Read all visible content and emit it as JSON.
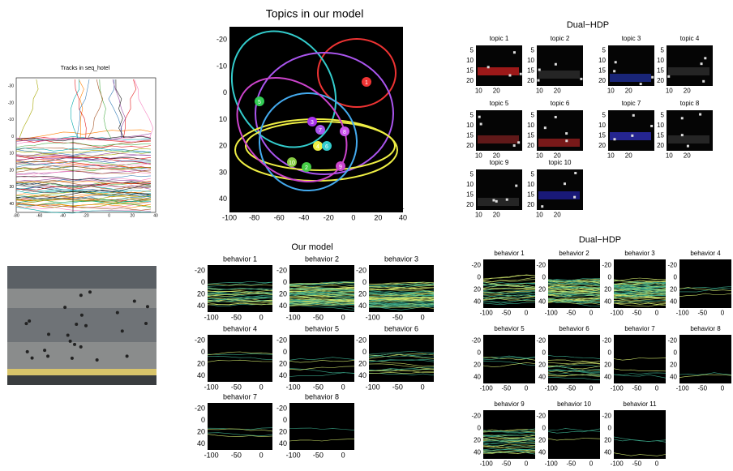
{
  "tracks_panel": {
    "title": "Tracks in seq_hotel",
    "xticks": [
      "-80",
      "-60",
      "-40",
      "-20",
      "0",
      "20",
      "40"
    ],
    "yticks": [
      "-30",
      "-20",
      "-10",
      "0",
      "10",
      "20",
      "30",
      "40"
    ]
  },
  "topics_panel": {
    "title": "Topics in our model",
    "xticks": [
      "-100",
      "-80",
      "-60",
      "-40",
      "-20",
      "0",
      "20",
      "40"
    ],
    "yticks": [
      "-20",
      "-10",
      "0",
      "10",
      "20",
      "30",
      "40"
    ],
    "markers": [
      "1",
      "2",
      "3",
      "4",
      "5",
      "6",
      "7",
      "8",
      "9",
      "10"
    ]
  },
  "dual_hdp_topics": {
    "title": "Dual−HDP",
    "panels": [
      "topic 1",
      "topic 2",
      "topic 3",
      "topic 4",
      "topic 5",
      "topic 6",
      "topic 7",
      "topic 8",
      "topic 9",
      "topic 10"
    ],
    "yticks": [
      "5",
      "10",
      "15",
      "20"
    ],
    "xticks": [
      "10",
      "20"
    ]
  },
  "our_model_behaviors": {
    "title": "Our model",
    "panels": [
      "behavior 1",
      "behavior 2",
      "behavior 3",
      "behavior 4",
      "behavior 5",
      "behavior 6",
      "behavior 7",
      "behavior 8"
    ],
    "yticks": [
      "-20",
      "0",
      "20",
      "40"
    ],
    "xticks": [
      "-100",
      "-50",
      "0"
    ]
  },
  "dual_hdp_behaviors": {
    "title": "Dual−HDP",
    "panels": [
      "behavior 1",
      "behavior 2",
      "behavior 3",
      "behavior 4",
      "behavior 5",
      "behavior 6",
      "behavior 7",
      "behavior 8",
      "behavior 9",
      "behavior 10",
      "behavior 11"
    ],
    "yticks": [
      "-20",
      "0",
      "20",
      "40"
    ],
    "xticks": [
      "-100",
      "-50",
      "0"
    ]
  }
}
